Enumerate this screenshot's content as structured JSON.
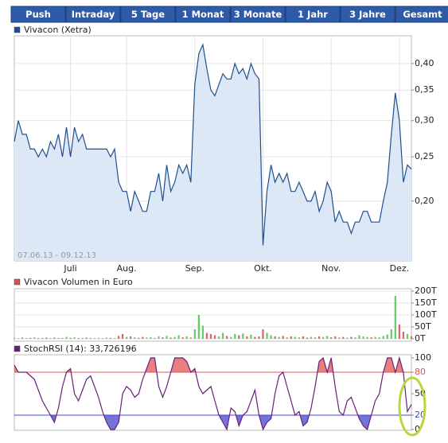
{
  "tabs": [
    "Push",
    "Intraday",
    "5 Tage",
    "1 Monat",
    "3 Monate",
    "1 Jahr",
    "3 Jahre",
    "Gesamt"
  ],
  "chart_data": [
    {
      "type": "line",
      "log_scale": true,
      "grid": true,
      "area_color": "#dde8f7",
      "series": [
        {
          "name": "Vivacon (Xetra)",
          "color": "#1f4f8f",
          "values": [
            0.27,
            0.3,
            0.28,
            0.28,
            0.26,
            0.26,
            0.25,
            0.26,
            0.25,
            0.27,
            0.26,
            0.28,
            0.25,
            0.29,
            0.25,
            0.29,
            0.27,
            0.28,
            0.26,
            0.26,
            0.26,
            0.26,
            0.26,
            0.26,
            0.25,
            0.26,
            0.22,
            0.21,
            0.21,
            0.19,
            0.21,
            0.2,
            0.19,
            0.19,
            0.21,
            0.21,
            0.23,
            0.2,
            0.24,
            0.21,
            0.22,
            0.24,
            0.23,
            0.24,
            0.22,
            0.36,
            0.42,
            0.44,
            0.39,
            0.35,
            0.34,
            0.36,
            0.38,
            0.37,
            0.37,
            0.4,
            0.38,
            0.39,
            0.37,
            0.4,
            0.38,
            0.37,
            0.16,
            0.21,
            0.24,
            0.22,
            0.23,
            0.22,
            0.23,
            0.21,
            0.21,
            0.22,
            0.21,
            0.2,
            0.2,
            0.21,
            0.19,
            0.2,
            0.22,
            0.21,
            0.18,
            0.19,
            0.18,
            0.18,
            0.17,
            0.18,
            0.18,
            0.19,
            0.19,
            0.18,
            0.18,
            0.18,
            0.2,
            0.22,
            0.28,
            0.345,
            0.3,
            0.22,
            0.24,
            0.235
          ]
        }
      ],
      "annotation": "07.06.13 - 09.12.13",
      "xlim": [
        0,
        99
      ],
      "xticks": [
        {
          "value": 14,
          "label": "Juli"
        },
        {
          "value": 28,
          "label": "Aug."
        },
        {
          "value": 45,
          "label": "Sep."
        },
        {
          "value": 62,
          "label": "Okt."
        },
        {
          "value": 79,
          "label": "Nov."
        },
        {
          "value": 96,
          "label": "Dez."
        }
      ],
      "ylim": [
        0.148,
        0.46
      ],
      "yticks": [
        {
          "value": 0.2,
          "label": "0,20"
        },
        {
          "value": 0.25,
          "label": "0,25"
        },
        {
          "value": 0.3,
          "label": "0,30"
        },
        {
          "value": 0.35,
          "label": "0,35"
        },
        {
          "value": 0.4,
          "label": "0,40"
        }
      ]
    },
    {
      "type": "bar",
      "grid": true,
      "up_color": "#66cc66",
      "down_color": "#dd6666",
      "series": [
        {
          "name": "Vivacon Volumen in Euro",
          "color": "#cc5555",
          "values": [
            4,
            3,
            5,
            3,
            4,
            6,
            3,
            4,
            5,
            3,
            5,
            4,
            3,
            8,
            4,
            6,
            3,
            4,
            5,
            4,
            3,
            4,
            3,
            5,
            4,
            3,
            12,
            20,
            8,
            10,
            6,
            4,
            8,
            5,
            7,
            4,
            10,
            6,
            12,
            5,
            8,
            15,
            6,
            10,
            5,
            40,
            100,
            55,
            25,
            20,
            15,
            10,
            25,
            12,
            8,
            20,
            15,
            22,
            10,
            18,
            8,
            10,
            40,
            25,
            15,
            10,
            8,
            12,
            6,
            10,
            8,
            6,
            10,
            5,
            8,
            6,
            10,
            8,
            12,
            6,
            10,
            6,
            8,
            5,
            8,
            6,
            15,
            10,
            8,
            6,
            8,
            6,
            12,
            18,
            40,
            180,
            60,
            30,
            20,
            10
          ]
        }
      ],
      "ylim": [
        0,
        200
      ],
      "yticks": [
        {
          "value": 0,
          "label": "0T"
        },
        {
          "value": 50,
          "label": "50T"
        },
        {
          "value": 100,
          "label": "100T"
        },
        {
          "value": 150,
          "label": "150T"
        },
        {
          "value": 200,
          "label": "200T"
        }
      ]
    },
    {
      "type": "line",
      "grid": false,
      "series": [
        {
          "name": "StochRSI (14): 33,726196",
          "color": "#6a1f7a",
          "values": [
            90,
            80,
            80,
            80,
            75,
            70,
            55,
            40,
            30,
            20,
            10,
            30,
            60,
            80,
            85,
            50,
            40,
            55,
            70,
            75,
            60,
            45,
            25,
            10,
            0,
            0,
            10,
            50,
            60,
            55,
            45,
            50,
            70,
            85,
            100,
            100,
            60,
            45,
            60,
            80,
            100,
            100,
            100,
            95,
            80,
            85,
            60,
            50,
            55,
            60,
            40,
            20,
            10,
            0,
            30,
            25,
            5,
            20,
            25,
            40,
            55,
            20,
            0,
            10,
            15,
            50,
            75,
            80,
            60,
            40,
            20,
            25,
            5,
            10,
            30,
            60,
            95,
            100,
            80,
            100,
            60,
            25,
            20,
            40,
            45,
            30,
            15,
            5,
            0,
            20,
            40,
            50,
            80,
            100,
            100,
            80,
            100,
            80,
            25,
            35
          ]
        }
      ],
      "bands": [
        {
          "value": 80,
          "color": "#e05555",
          "side": "above"
        },
        {
          "value": 20,
          "color": "#4444cc",
          "side": "below"
        }
      ],
      "ylim": [
        0,
        100
      ],
      "yticks": [
        0,
        20,
        50,
        80,
        100
      ]
    }
  ]
}
